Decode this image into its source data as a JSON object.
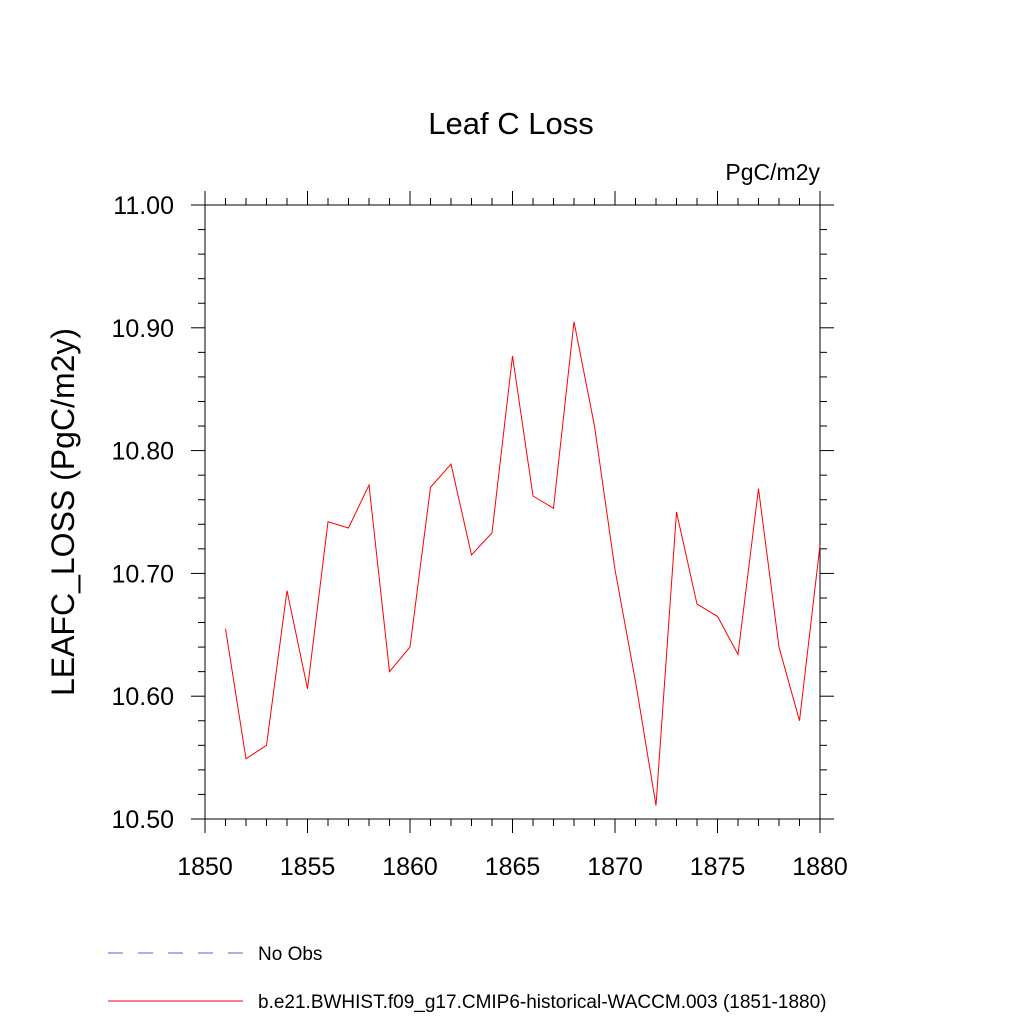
{
  "chart_data": {
    "type": "line",
    "title": "Leaf C Loss",
    "units_label": "PgC/m2y",
    "ylabel": "LEAFC_LOSS  (PgC/m2y)",
    "xlabel": "",
    "xlim": [
      1850,
      1880
    ],
    "ylim": [
      10.5,
      11.0
    ],
    "x_ticks": [
      "1850",
      "1855",
      "1860",
      "1865",
      "1870",
      "1875",
      "1880"
    ],
    "y_ticks": [
      "10.50",
      "10.60",
      "10.70",
      "10.80",
      "10.90",
      "11.00"
    ],
    "grid": false,
    "series": [
      {
        "name": "b.e21.BWHIST.f09_g17.CMIP6-historical-WACCM.003 (1851-1880)",
        "color": "#ff0000",
        "x": [
          1851,
          1852,
          1853,
          1854,
          1855,
          1856,
          1857,
          1858,
          1859,
          1860,
          1861,
          1862,
          1863,
          1864,
          1865,
          1866,
          1867,
          1868,
          1869,
          1870,
          1871,
          1872,
          1873,
          1874,
          1875,
          1876,
          1877,
          1878,
          1879,
          1880
        ],
        "values": [
          10.655,
          10.549,
          10.56,
          10.686,
          10.606,
          10.742,
          10.737,
          10.772,
          10.62,
          10.64,
          10.77,
          10.789,
          10.715,
          10.733,
          10.877,
          10.763,
          10.753,
          10.905,
          10.82,
          10.703,
          10.612,
          10.511,
          10.75,
          10.675,
          10.665,
          10.634,
          10.769,
          10.64,
          10.58,
          10.723
        ]
      }
    ],
    "legend": {
      "placement": "bottom-left",
      "entries": [
        {
          "label": "No Obs",
          "color": "#6a5acd",
          "style": "dashed"
        },
        {
          "label": "b.e21.BWHIST.f09_g17.CMIP6-historical-WACCM.003 (1851-1880)",
          "color": "#ff0000",
          "style": "solid"
        }
      ]
    }
  }
}
